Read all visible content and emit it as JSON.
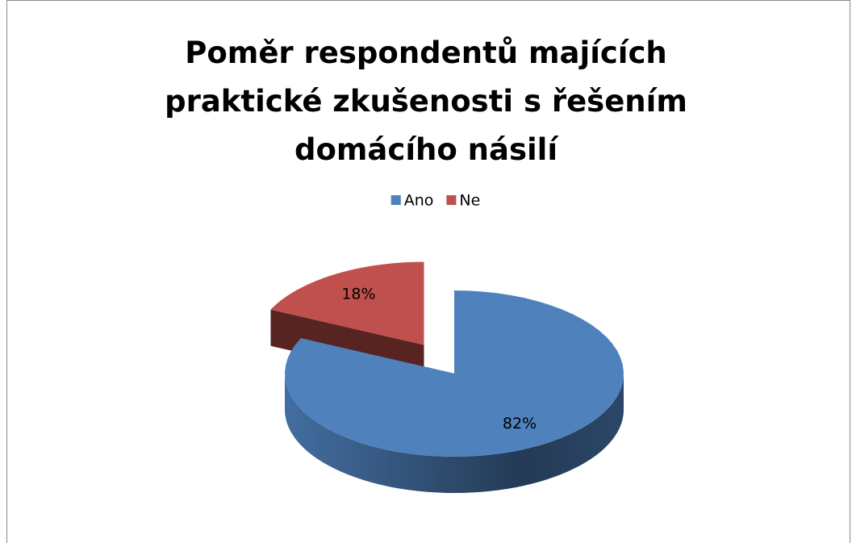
{
  "chart_data": {
    "type": "pie3d",
    "title": "Poměr respondentů majících praktické zkušenosti s řešením domácího násilí",
    "categories": [
      "Ano",
      "Ne"
    ],
    "values": [
      82,
      18
    ],
    "value_labels": [
      "82%",
      "18%"
    ],
    "colors": [
      "#4f81bd",
      "#c0504d"
    ],
    "legend": "top"
  }
}
